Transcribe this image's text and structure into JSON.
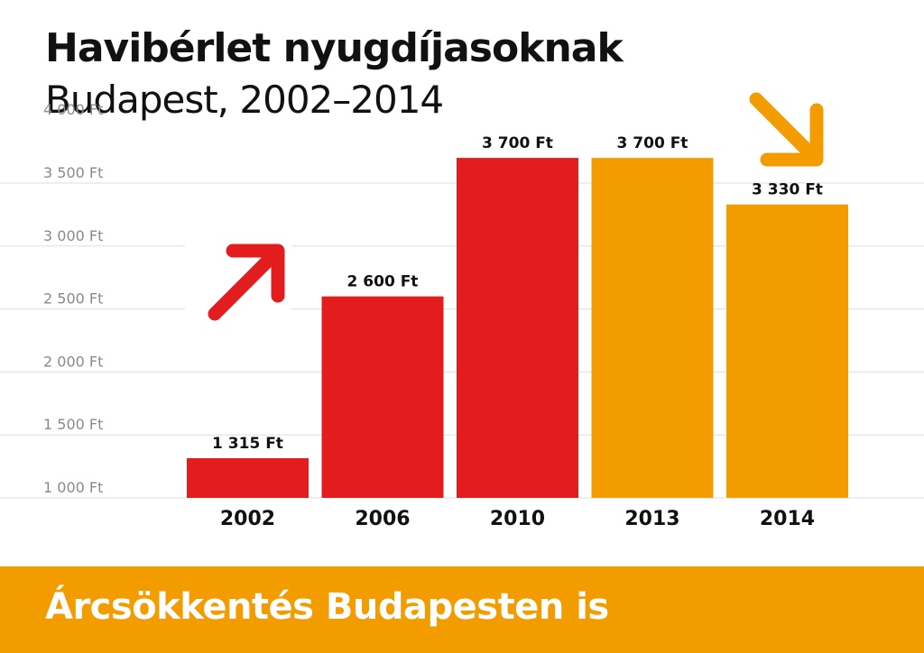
{
  "chart_data": {
    "type": "bar",
    "title": "Havibérlet nyugdíjasoknak",
    "subtitle": "Budapest, 2002–2014",
    "categories": [
      "2002",
      "2006",
      "2010",
      "2013",
      "2014"
    ],
    "values": [
      1315,
      2600,
      3700,
      3700,
      3330
    ],
    "data_labels": [
      "1 315 Ft",
      "2 600 Ft",
      "3 700 Ft",
      "3 700 Ft",
      "3 330 Ft"
    ],
    "bar_colors": [
      "#e31d1d",
      "#e31d1d",
      "#e31d1d",
      "#f39c00",
      "#f39c00"
    ],
    "ylim": [
      1000,
      4000
    ],
    "yticks": [
      1000,
      1500,
      2000,
      2500,
      3000,
      3500,
      4000
    ],
    "ytick_labels": [
      "1 000 Ft",
      "1 500 Ft",
      "2 000 Ft",
      "2 500 Ft",
      "3 000 Ft",
      "3 500 Ft",
      "4 000 Ft"
    ],
    "grid": true,
    "xlabel": "",
    "ylabel": "",
    "annotations": [
      {
        "type": "arrow-up-right",
        "color": "#e31d1d",
        "near_category": "2002"
      },
      {
        "type": "arrow-down-right",
        "color": "#f39c00",
        "near_category": "2014"
      }
    ]
  },
  "footer": {
    "text": "Árcsökkentés Budapesten is",
    "background": "#f39c00"
  },
  "colors": {
    "red": "#e31d1d",
    "orange": "#f39c00",
    "grid": "#dddddd",
    "axis_text": "#8a8a8a"
  }
}
